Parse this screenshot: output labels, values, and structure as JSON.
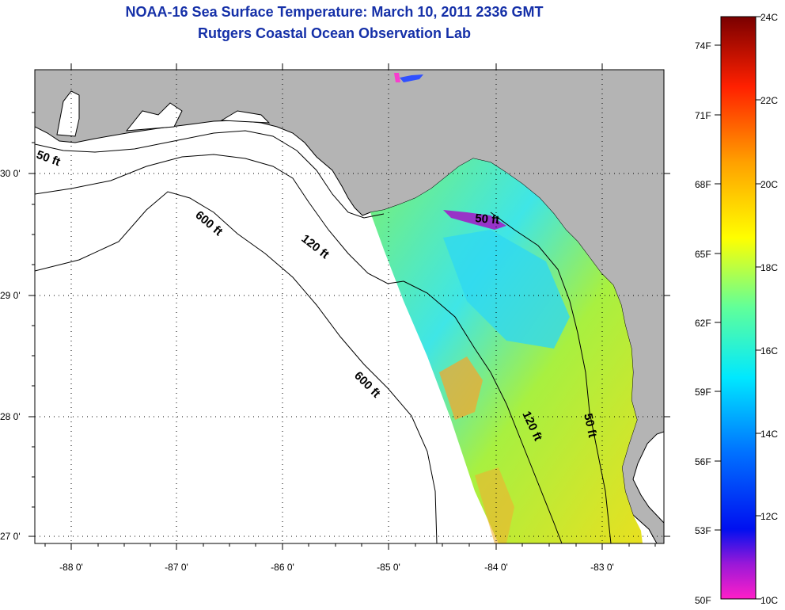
{
  "title": {
    "line1": "NOAA-16 Sea Surface Temperature:  March 10, 2011 2336 GMT",
    "line2": "Rutgers Coastal Ocean Observation Lab"
  },
  "map": {
    "lon_labels": [
      "-88 0'",
      "-87 0'",
      "-86 0'",
      "-85 0'",
      "-84 0'",
      "-83 0'"
    ],
    "lat_labels": [
      "30 0'",
      "29 0'",
      "28 0'",
      "27 0'"
    ],
    "contour_labels": [
      "50 ft",
      "600 ft",
      "120 ft",
      "50 ft",
      "600 ft",
      "120 ft",
      "50 ft"
    ],
    "colors": {
      "land": "#b4b4b4",
      "ocean": "#ffffff",
      "coast": "#000000"
    }
  },
  "colorbar": {
    "fahrenheit_labels": [
      "74F",
      "71F",
      "68F",
      "65F",
      "62F",
      "59F",
      "56F",
      "53F",
      "50F"
    ],
    "celsius_labels": [
      "24C",
      "22C",
      "20C",
      "18C",
      "16C",
      "14C",
      "12C",
      "10C"
    ],
    "stops": [
      "#ff1fc8",
      "#7a18d6",
      "#0010f0",
      "#0080ff",
      "#00eaff",
      "#7dff8a",
      "#ffff00",
      "#ffa000",
      "#ff2000",
      "#7a0000"
    ]
  }
}
